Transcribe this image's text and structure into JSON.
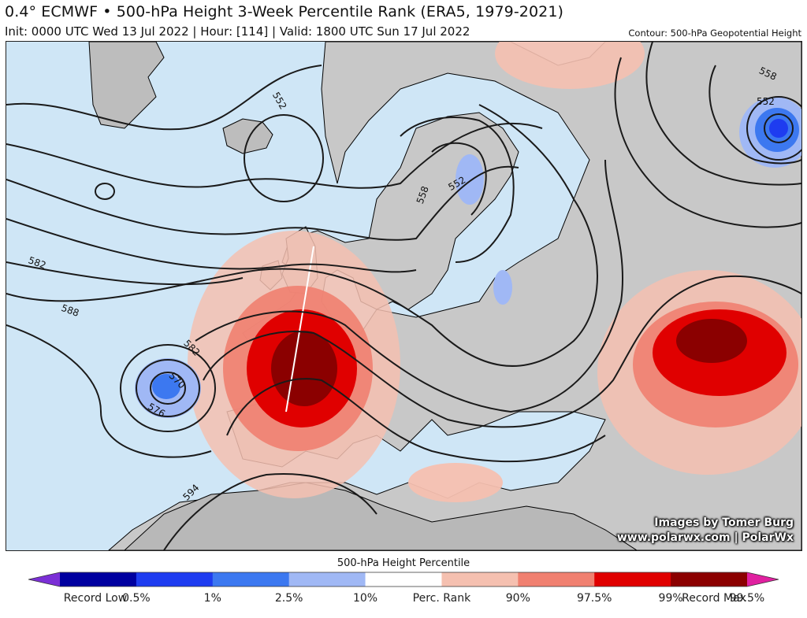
{
  "header": {
    "title": "0.4° ECMWF • 500-hPa Height 3-Week Percentile Rank (ERA5, 1979-2021)",
    "subtitle": "Init: 0000 UTC Wed 13 Jul 2022 | Hour: [114] | Valid: 1800 UTC Sun 17 Jul 2022",
    "contour_note": "Contour: 500-hPa Geopotential Height"
  },
  "map": {
    "contour_labels": [
      "552",
      "552",
      "558",
      "552",
      "558",
      "582",
      "588",
      "582",
      "570",
      "576",
      "594"
    ],
    "colors": {
      "ocean": "#cfe6f6",
      "land": "#c8c8c8",
      "contour": "#1a1a1a",
      "coast": "#000000"
    }
  },
  "credits": {
    "line1": "Images by Tomer Burg",
    "line2": "www.polarwx.com | PolarWx"
  },
  "legend": {
    "title": "500-hPa Height Percentile",
    "segments": [
      {
        "color": "#7b2fd6"
      },
      {
        "color": "#0000a0"
      },
      {
        "color": "#1e3cf0"
      },
      {
        "color": "#3c78f0"
      },
      {
        "color": "#a0b8f5"
      },
      {
        "color": "#ffffff"
      },
      {
        "color": "#f5c0b0"
      },
      {
        "color": "#f08070"
      },
      {
        "color": "#e00000"
      },
      {
        "color": "#8b0000"
      },
      {
        "color": "#e020a0"
      }
    ],
    "labels": [
      "Record Low",
      "0.5%",
      "1%",
      "2.5%",
      "10%",
      "Perc. Rank",
      "90%",
      "97.5%",
      "99%",
      "99.5%",
      "Record Max"
    ]
  }
}
